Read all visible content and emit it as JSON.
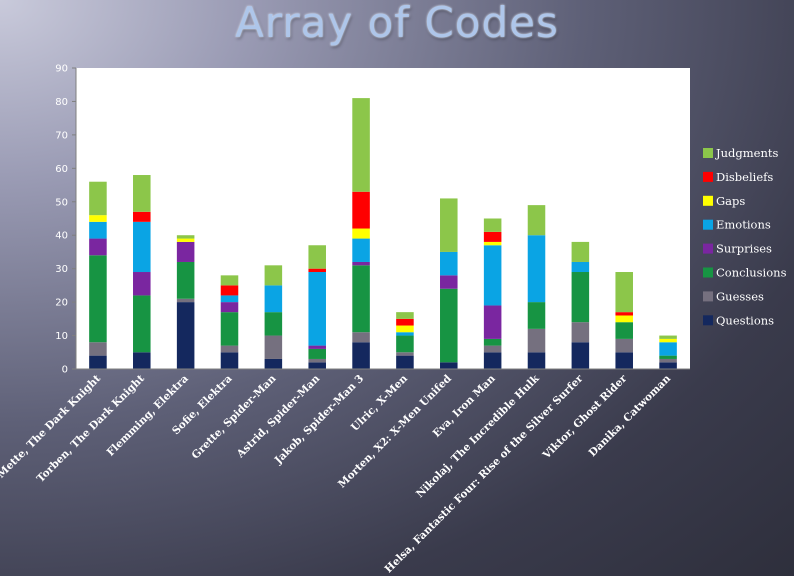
{
  "slide": {
    "title": "Array of Codes"
  },
  "chart_data": {
    "type": "bar",
    "stacked": true,
    "title": "",
    "xlabel": "",
    "ylabel": "",
    "ylim": [
      0,
      90
    ],
    "yticks": [
      0,
      10,
      20,
      30,
      40,
      50,
      60,
      70,
      80,
      90
    ],
    "grid": false,
    "legend_position": "right",
    "categories": [
      "Mette, The Dark Knight",
      "Torben, The Dark Knight",
      "Flemming, Elektra",
      "Sofie, Elektra",
      "Grette, Spider-Man",
      "Astrid, Spider-Man",
      "Jakob, Spider-Man 3",
      "Ulric, X-Men",
      "Morten, X2: X-Men Unifed",
      "Eva, Iron Man",
      "Nikolaj, The Incredible Hulk",
      "Helsa, Fantastic Four: Rise of the Silver Surfer",
      "Viktor, Ghost Rider",
      "Danika, Catwoman"
    ],
    "series": [
      {
        "name": "Questions",
        "color": "#14285e",
        "values": [
          4,
          5,
          20,
          5,
          3,
          2,
          8,
          4,
          2,
          5,
          5,
          8,
          5,
          2
        ]
      },
      {
        "name": "Guesses",
        "color": "#75707f",
        "values": [
          4,
          0,
          1,
          2,
          7,
          1,
          3,
          1,
          0,
          2,
          7,
          6,
          4,
          1
        ]
      },
      {
        "name": "Conclusions",
        "color": "#179443",
        "values": [
          26,
          17,
          11,
          10,
          7,
          3,
          20,
          5,
          22,
          2,
          8,
          15,
          5,
          1
        ]
      },
      {
        "name": "Surprises",
        "color": "#7a26a0",
        "values": [
          5,
          7,
          6,
          3,
          0,
          1,
          1,
          0,
          4,
          10,
          0,
          0,
          0,
          0
        ]
      },
      {
        "name": "Emotions",
        "color": "#0aa4e4",
        "values": [
          5,
          15,
          0,
          2,
          8,
          22,
          7,
          1,
          7,
          18,
          20,
          3,
          0,
          4
        ]
      },
      {
        "name": "Gaps",
        "color": "#ffff00",
        "values": [
          2,
          0,
          1,
          0,
          0,
          0,
          3,
          2,
          0,
          1,
          0,
          0,
          2,
          1
        ]
      },
      {
        "name": "Disbeliefs",
        "color": "#ff0000",
        "values": [
          0,
          3,
          0,
          3,
          0,
          1,
          11,
          2,
          0,
          3,
          0,
          0,
          1,
          0
        ]
      },
      {
        "name": "Judgments",
        "color": "#8cc64a",
        "values": [
          10,
          11,
          1,
          3,
          6,
          7,
          28,
          2,
          16,
          4,
          9,
          6,
          12,
          1
        ]
      }
    ]
  }
}
